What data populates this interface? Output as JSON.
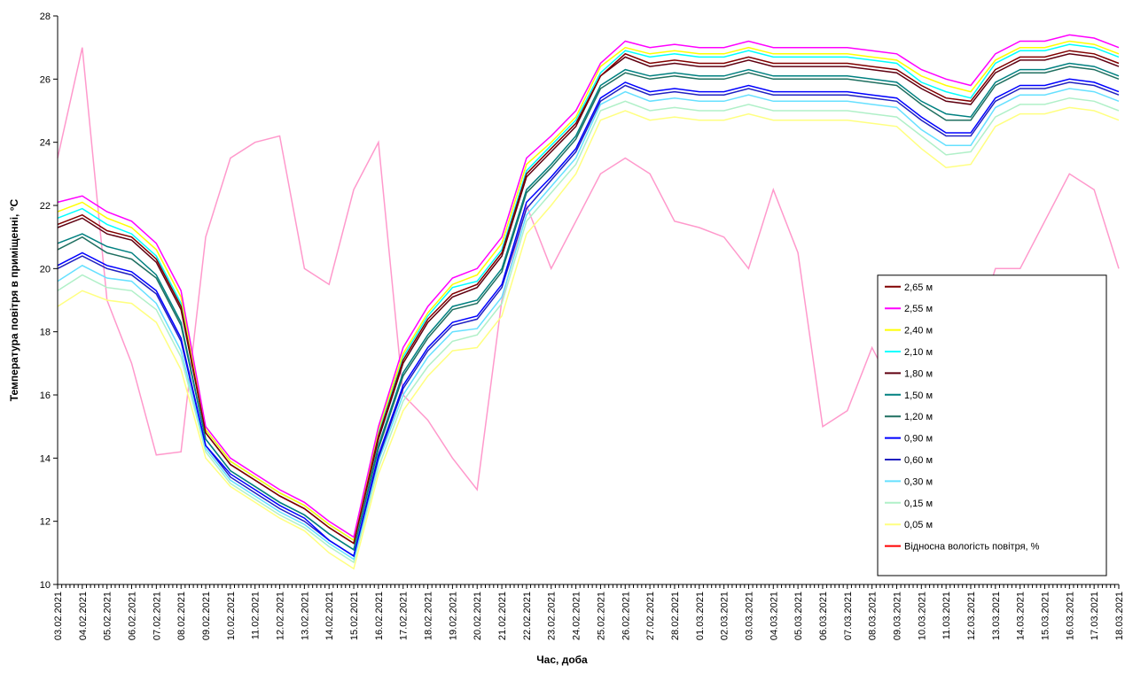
{
  "chart_data": {
    "type": "line",
    "y_label": "Температура повітря в приміщенні, °С",
    "x_label": "Час, доба",
    "categories": [
      "03.02.2021",
      "04.02.2021",
      "05.02.2021",
      "06.02.2021",
      "07.02.2021",
      "08.02.2021",
      "09.02.2021",
      "10.02.2021",
      "11.02.2021",
      "12.02.2021",
      "13.02.2021",
      "14.02.2021",
      "15.02.2021",
      "16.02.2021",
      "17.02.2021",
      "18.02.2021",
      "19.02.2021",
      "20.02.2021",
      "21.02.2021",
      "22.02.2021",
      "23.02.2021",
      "24.02.2021",
      "25.02.2021",
      "26.02.2021",
      "27.02.2021",
      "28.02.2021",
      "01.03.2021",
      "02.03.2021",
      "03.03.2021",
      "04.03.2021",
      "05.03.2021",
      "06.03.2021",
      "07.03.2021",
      "08.03.2021",
      "09.03.2021",
      "10.03.2021",
      "11.03.2021",
      "12.03.2021",
      "13.03.2021",
      "14.03.2021",
      "15.03.2021",
      "16.03.2021",
      "17.03.2021",
      "18.03.2021"
    ],
    "ylim": [
      10,
      28
    ],
    "yticks": [
      10,
      12,
      14,
      16,
      18,
      20,
      22,
      24,
      26,
      28
    ],
    "legend": "lower-right",
    "series": [
      {
        "name": "2,65 м",
        "color": "#800000",
        "values": [
          21.4,
          21.7,
          21.2,
          21.0,
          20.3,
          18.8,
          14.8,
          13.8,
          13.3,
          12.8,
          12.4,
          11.8,
          11.3,
          14.7,
          17.1,
          18.4,
          19.2,
          19.5,
          20.5,
          23.0,
          23.8,
          24.6,
          26.1,
          26.8,
          26.5,
          26.6,
          26.5,
          26.5,
          26.7,
          26.5,
          26.5,
          26.5,
          26.5,
          26.4,
          26.3,
          25.8,
          25.4,
          25.3,
          26.3,
          26.7,
          26.7,
          26.9,
          26.8,
          26.5
        ]
      },
      {
        "name": "2,55 м",
        "color": "#ff00ff",
        "values": [
          22.1,
          22.3,
          21.8,
          21.5,
          20.8,
          19.3,
          15.0,
          14.0,
          13.5,
          13.0,
          12.6,
          12.0,
          11.5,
          15.0,
          17.5,
          18.8,
          19.7,
          20.0,
          21.0,
          23.5,
          24.2,
          25.0,
          26.5,
          27.2,
          27.0,
          27.1,
          27.0,
          27.0,
          27.2,
          27.0,
          27.0,
          27.0,
          27.0,
          26.9,
          26.8,
          26.3,
          26.0,
          25.8,
          26.8,
          27.2,
          27.2,
          27.4,
          27.3,
          27.0
        ]
      },
      {
        "name": "2,40 м",
        "color": "#ffff00",
        "values": [
          21.8,
          22.1,
          21.6,
          21.3,
          20.6,
          19.1,
          14.9,
          13.9,
          13.4,
          12.9,
          12.5,
          11.9,
          11.4,
          14.9,
          17.3,
          18.6,
          19.5,
          19.8,
          20.8,
          23.3,
          24.0,
          24.8,
          26.4,
          27.0,
          26.8,
          26.9,
          26.8,
          26.8,
          27.0,
          26.8,
          26.8,
          26.8,
          26.8,
          26.7,
          26.6,
          26.1,
          25.8,
          25.6,
          26.6,
          27.0,
          27.0,
          27.2,
          27.1,
          26.8
        ]
      },
      {
        "name": "2,10 м",
        "color": "#00ffff",
        "values": [
          21.6,
          21.9,
          21.4,
          21.1,
          20.4,
          18.9,
          14.9,
          13.9,
          13.4,
          12.9,
          12.5,
          11.9,
          11.4,
          14.8,
          17.2,
          18.5,
          19.4,
          19.6,
          20.6,
          23.1,
          23.9,
          24.7,
          26.2,
          26.9,
          26.7,
          26.8,
          26.7,
          26.7,
          26.9,
          26.7,
          26.7,
          26.7,
          26.7,
          26.6,
          26.5,
          25.9,
          25.6,
          25.4,
          26.5,
          26.9,
          26.9,
          27.1,
          27.0,
          26.7
        ]
      },
      {
        "name": "1,80 м",
        "color": "#600010",
        "values": [
          21.3,
          21.6,
          21.1,
          20.9,
          20.2,
          18.7,
          14.8,
          13.8,
          13.3,
          12.8,
          12.4,
          11.8,
          11.3,
          14.6,
          17.0,
          18.3,
          19.1,
          19.4,
          20.4,
          22.9,
          23.7,
          24.5,
          26.1,
          26.7,
          26.4,
          26.5,
          26.4,
          26.4,
          26.6,
          26.4,
          26.4,
          26.4,
          26.4,
          26.3,
          26.2,
          25.7,
          25.3,
          25.2,
          26.2,
          26.6,
          26.6,
          26.8,
          26.7,
          26.4
        ]
      },
      {
        "name": "1,50 м",
        "color": "#008080",
        "values": [
          20.8,
          21.1,
          20.7,
          20.5,
          19.8,
          18.3,
          14.6,
          13.6,
          13.1,
          12.6,
          12.2,
          11.6,
          11.1,
          14.4,
          16.7,
          17.9,
          18.8,
          19.0,
          20.0,
          22.5,
          23.3,
          24.2,
          25.8,
          26.3,
          26.1,
          26.2,
          26.1,
          26.1,
          26.3,
          26.1,
          26.1,
          26.1,
          26.1,
          26.0,
          25.9,
          25.3,
          24.9,
          24.8,
          25.9,
          26.3,
          26.3,
          26.5,
          26.4,
          26.1
        ]
      },
      {
        "name": "1,20 м",
        "color": "#1f6f60",
        "values": [
          20.6,
          21.0,
          20.5,
          20.3,
          19.7,
          18.2,
          14.6,
          13.6,
          13.1,
          12.6,
          12.2,
          11.6,
          11.1,
          14.3,
          16.6,
          17.8,
          18.7,
          18.9,
          19.9,
          22.4,
          23.2,
          24.1,
          25.7,
          26.2,
          26.0,
          26.1,
          26.0,
          26.0,
          26.2,
          26.0,
          26.0,
          26.0,
          26.0,
          25.9,
          25.8,
          25.2,
          24.7,
          24.7,
          25.8,
          26.2,
          26.2,
          26.4,
          26.3,
          26.0
        ]
      },
      {
        "name": "0,90 м",
        "color": "#0000ff",
        "values": [
          20.1,
          20.5,
          20.1,
          19.9,
          19.3,
          17.8,
          14.4,
          13.5,
          13.0,
          12.5,
          12.1,
          11.4,
          10.9,
          14.1,
          16.3,
          17.5,
          18.3,
          18.5,
          19.5,
          22.1,
          22.9,
          23.8,
          25.4,
          25.9,
          25.6,
          25.7,
          25.6,
          25.6,
          25.8,
          25.6,
          25.6,
          25.6,
          25.6,
          25.5,
          25.4,
          24.8,
          24.3,
          24.3,
          25.4,
          25.8,
          25.8,
          26.0,
          25.9,
          25.6
        ]
      },
      {
        "name": "0,60 м",
        "color": "#2020c0",
        "values": [
          20.0,
          20.4,
          20.0,
          19.8,
          19.2,
          17.7,
          14.4,
          13.4,
          12.9,
          12.4,
          12.0,
          11.4,
          10.9,
          14.0,
          16.2,
          17.4,
          18.2,
          18.4,
          19.4,
          21.9,
          22.8,
          23.7,
          25.3,
          25.8,
          25.5,
          25.6,
          25.5,
          25.5,
          25.7,
          25.5,
          25.5,
          25.5,
          25.5,
          25.4,
          25.3,
          24.7,
          24.2,
          24.2,
          25.3,
          25.7,
          25.7,
          25.9,
          25.8,
          25.5
        ]
      },
      {
        "name": "0,30 м",
        "color": "#66e0ff",
        "values": [
          19.6,
          20.1,
          19.7,
          19.6,
          18.9,
          17.4,
          14.3,
          13.3,
          12.8,
          12.3,
          11.9,
          11.3,
          10.8,
          13.9,
          16.0,
          17.2,
          18.0,
          18.1,
          19.1,
          21.7,
          22.6,
          23.5,
          25.2,
          25.6,
          25.3,
          25.4,
          25.3,
          25.3,
          25.5,
          25.3,
          25.3,
          25.3,
          25.3,
          25.2,
          25.1,
          24.4,
          23.9,
          23.9,
          25.1,
          25.5,
          25.5,
          25.7,
          25.6,
          25.3
        ]
      },
      {
        "name": "0,15 м",
        "color": "#b0f0c8",
        "values": [
          19.3,
          19.8,
          19.4,
          19.3,
          18.7,
          17.2,
          14.2,
          13.2,
          12.7,
          12.2,
          11.8,
          11.2,
          10.7,
          13.7,
          15.8,
          16.9,
          17.7,
          17.9,
          18.9,
          21.5,
          22.4,
          23.3,
          25.0,
          25.3,
          25.0,
          25.1,
          25.0,
          25.0,
          25.2,
          25.0,
          25.0,
          25.0,
          25.0,
          24.9,
          24.8,
          24.2,
          23.6,
          23.7,
          24.8,
          25.2,
          25.2,
          25.4,
          25.3,
          25.0
        ]
      },
      {
        "name": "0,05 м",
        "color": "#ffff80",
        "values": [
          18.8,
          19.3,
          19.0,
          18.9,
          18.3,
          16.8,
          14.0,
          13.1,
          12.6,
          12.1,
          11.7,
          11.0,
          10.5,
          13.5,
          15.5,
          16.6,
          17.4,
          17.5,
          18.5,
          21.1,
          22.0,
          23.0,
          24.7,
          25.0,
          24.7,
          24.8,
          24.7,
          24.7,
          24.9,
          24.7,
          24.7,
          24.7,
          24.7,
          24.6,
          24.5,
          23.8,
          23.2,
          23.3,
          24.5,
          24.9,
          24.9,
          25.1,
          25.0,
          24.7
        ]
      },
      {
        "name": "Відносна вологість повітря, %",
        "color": "#ff99cc",
        "legend_color": "#ff0000",
        "values": [
          23.5,
          27.0,
          19.0,
          17.0,
          14.1,
          14.2,
          21.0,
          23.5,
          24.0,
          24.2,
          20.0,
          19.5,
          22.5,
          24.0,
          16.0,
          15.2,
          14.0,
          13.0,
          19.0,
          22.0,
          20.0,
          21.5,
          23.0,
          23.5,
          23.0,
          21.5,
          21.3,
          21.0,
          20.0,
          22.5,
          20.5,
          15.0,
          15.5,
          17.5,
          16.0,
          15.0,
          16.0,
          17.5,
          20.0,
          20.0,
          21.5,
          23.0,
          22.5,
          20.0
        ]
      }
    ]
  }
}
